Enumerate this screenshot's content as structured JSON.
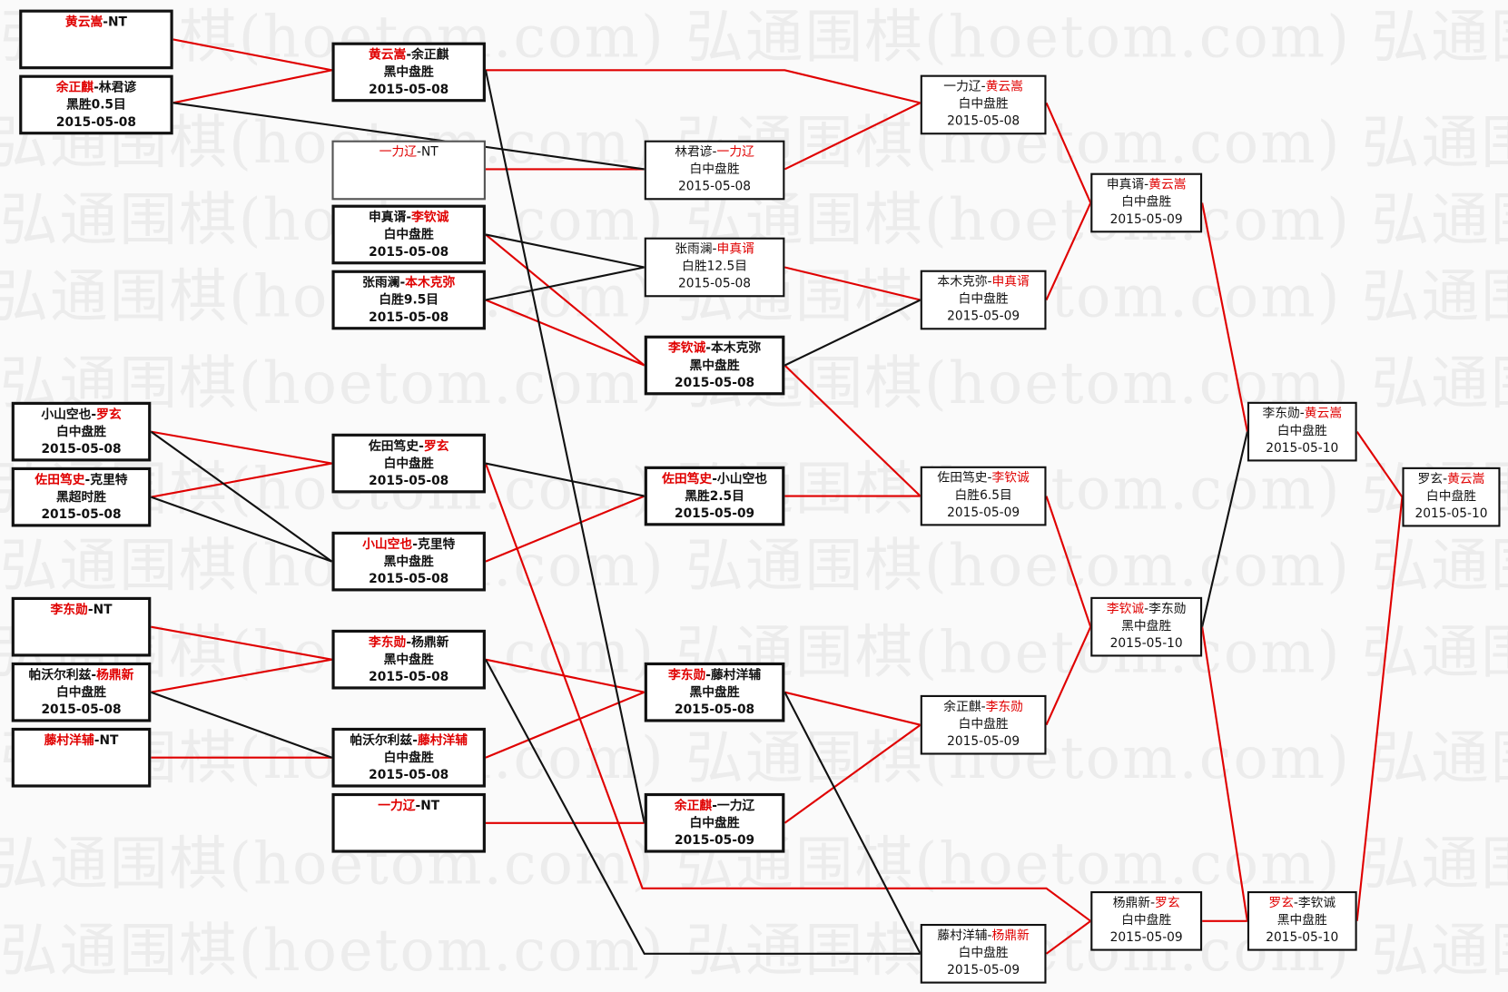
{
  "watermark": "弘通围棋(hoetom.com)",
  "colors": {
    "winner": "#e00000",
    "loser": "#111111",
    "background": "#fafafa"
  },
  "matches": [
    {
      "p1": "黄云嵩",
      "p2": "NT",
      "red": 1,
      "result": "",
      "date": ""
    },
    {
      "p1": "余正麒",
      "p2": "林君谚",
      "red": 1,
      "result": "黑胜0.5目",
      "date": "2015-05-08"
    },
    {
      "p1": "小山空也",
      "p2": "罗玄",
      "red": 2,
      "result": "白中盘胜",
      "date": "2015-05-08"
    },
    {
      "p1": "佐田笃史",
      "p2": "克里特",
      "red": 1,
      "result": "黑超时胜",
      "date": "2015-05-08"
    },
    {
      "p1": "李东勋",
      "p2": "NT",
      "red": 1,
      "result": "",
      "date": ""
    },
    {
      "p1": "帕沃尔利兹",
      "p2": "杨鼎新",
      "red": 2,
      "result": "白中盘胜",
      "date": "2015-05-08"
    },
    {
      "p1": "藤村洋辅",
      "p2": "NT",
      "red": 1,
      "result": "",
      "date": ""
    },
    {
      "p1": "黄云嵩",
      "p2": "余正麒",
      "red": 1,
      "result": "黑中盘胜",
      "date": "2015-05-08"
    },
    {
      "p1": "一力辽",
      "p2": "NT",
      "red": 1,
      "result": "",
      "date": ""
    },
    {
      "p1": "申真谞",
      "p2": "李钦诚",
      "red": 2,
      "result": "白中盘胜",
      "date": "2015-05-08"
    },
    {
      "p1": "张雨澜",
      "p2": "本木克弥",
      "red": 2,
      "result": "白胜9.5目",
      "date": "2015-05-08"
    },
    {
      "p1": "佐田笃史",
      "p2": "罗玄",
      "red": 2,
      "result": "白中盘胜",
      "date": "2015-05-08"
    },
    {
      "p1": "小山空也",
      "p2": "克里特",
      "red": 1,
      "result": "黑中盘胜",
      "date": "2015-05-08"
    },
    {
      "p1": "李东勋",
      "p2": "杨鼎新",
      "red": 1,
      "result": "黑中盘胜",
      "date": "2015-05-08"
    },
    {
      "p1": "帕沃尔利兹",
      "p2": "藤村洋辅",
      "red": 2,
      "result": "白中盘胜",
      "date": "2015-05-08"
    },
    {
      "p1": "一力辽",
      "p2": "NT",
      "red": 1,
      "result": "",
      "date": ""
    },
    {
      "p1": "林君谚",
      "p2": "一力辽",
      "red": 2,
      "result": "白中盘胜",
      "date": "2015-05-08"
    },
    {
      "p1": "张雨澜",
      "p2": "申真谞",
      "red": 2,
      "result": "白胜12.5目",
      "date": "2015-05-08"
    },
    {
      "p1": "李钦诚",
      "p2": "本木克弥",
      "red": 1,
      "result": "黑中盘胜",
      "date": "2015-05-08"
    },
    {
      "p1": "佐田笃史",
      "p2": "小山空也",
      "red": 1,
      "result": "黑胜2.5目",
      "date": "2015-05-09"
    },
    {
      "p1": "李东勋",
      "p2": "藤村洋辅",
      "red": 1,
      "result": "黑中盘胜",
      "date": "2015-05-08"
    },
    {
      "p1": "余正麒",
      "p2": "一力辽",
      "red": 1,
      "result": "白中盘胜",
      "date": "2015-05-09"
    },
    {
      "p1": "一力辽",
      "p2": "黄云嵩",
      "red": 2,
      "result": "白中盘胜",
      "date": "2015-05-08"
    },
    {
      "p1": "本木克弥",
      "p2": "申真谞",
      "red": 2,
      "result": "白中盘胜",
      "date": "2015-05-09"
    },
    {
      "p1": "佐田笃史",
      "p2": "李钦诚",
      "red": 2,
      "result": "白胜6.5目",
      "date": "2015-05-09"
    },
    {
      "p1": "余正麒",
      "p2": "李东勋",
      "red": 2,
      "result": "白中盘胜",
      "date": "2015-05-09"
    },
    {
      "p1": "藤村洋辅",
      "p2": "杨鼎新",
      "red": 2,
      "result": "白中盘胜",
      "date": "2015-05-09"
    },
    {
      "p1": "申真谞",
      "p2": "黄云嵩",
      "red": 2,
      "result": "白中盘胜",
      "date": "2015-05-09"
    },
    {
      "p1": "李钦诚",
      "p2": "李东勋",
      "red": 1,
      "result": "黑中盘胜",
      "date": "2015-05-10"
    },
    {
      "p1": "杨鼎新",
      "p2": "罗玄",
      "red": 2,
      "result": "白中盘胜",
      "date": "2015-05-09"
    },
    {
      "p1": "李东勋",
      "p2": "黄云嵩",
      "red": 2,
      "result": "白中盘胜",
      "date": "2015-05-10"
    },
    {
      "p1": "罗玄",
      "p2": "李钦诚",
      "red": 1,
      "result": "黑中盘胜",
      "date": "2015-05-10"
    },
    {
      "p1": "罗玄",
      "p2": "黄云嵩",
      "red": 2,
      "result": "白中盘胜",
      "date": "2015-05-10"
    }
  ]
}
